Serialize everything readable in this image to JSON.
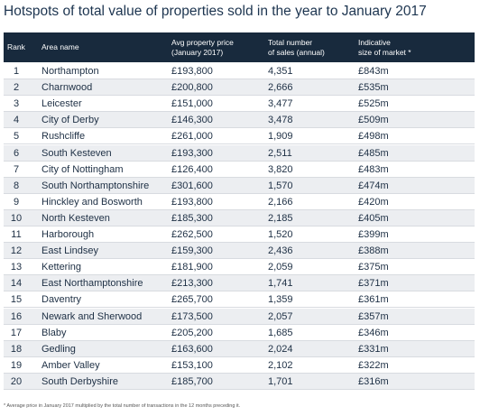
{
  "title": "Hotspots of total value of properties sold in the year to January 2017",
  "table": {
    "header": [
      [
        "Rank"
      ],
      [
        "Area name"
      ],
      [
        "Avg property price",
        "(January 2017)"
      ],
      [
        "Total number",
        "of sales (annual)"
      ],
      [
        "Indicative",
        "size of market *"
      ]
    ],
    "rows": [
      [
        "1",
        "Northampton",
        "£193,800",
        "4,351",
        "£843m"
      ],
      [
        "2",
        "Charnwood",
        "£200,800",
        "2,666",
        "£535m"
      ],
      [
        "3",
        "Leicester",
        "£151,000",
        "3,477",
        "£525m"
      ],
      [
        "4",
        "City of Derby",
        "£146,300",
        "3,478",
        "£509m"
      ],
      [
        "5",
        "Rushcliffe",
        "£261,000",
        "1,909",
        "£498m"
      ],
      [
        "6",
        "South Kesteven",
        "£193,300",
        "2,511",
        "£485m"
      ],
      [
        "7",
        "City of Nottingham",
        "£126,400",
        "3,820",
        "£483m"
      ],
      [
        "8",
        "South Northamptonshire",
        "£301,600",
        "1,570",
        "£474m"
      ],
      [
        "9",
        "Hinckley and Bosworth",
        "£193,800",
        "2,166",
        "£420m"
      ],
      [
        "10",
        "North Kesteven",
        "£185,300",
        "2,185",
        "£405m"
      ],
      [
        "11",
        "Harborough",
        "£262,500",
        "1,520",
        "£399m"
      ],
      [
        "12",
        "East Lindsey",
        "£159,300",
        "2,436",
        "£388m"
      ],
      [
        "13",
        "Kettering",
        "£181,900",
        "2,059",
        "£375m"
      ],
      [
        "14",
        "East Northamptonshire",
        "£213,300",
        "1,741",
        "£371m"
      ],
      [
        "15",
        "Daventry",
        "£265,700",
        "1,359",
        "£361m"
      ],
      [
        "16",
        "Newark and Sherwood",
        "£173,500",
        "2,057",
        "£357m"
      ],
      [
        "17",
        "Blaby",
        "£205,200",
        "1,685",
        "£346m"
      ],
      [
        "18",
        "Gedling",
        "£163,600",
        "2,024",
        "£331m"
      ],
      [
        "19",
        "Amber Valley",
        "£153,100",
        "2,102",
        "£322m"
      ],
      [
        "20",
        "South Derbyshire",
        "£185,700",
        "1,701",
        "£316m"
      ]
    ]
  },
  "footnote": "* Average price in January 2017 multiplied by the total number of transactions in the 12 months preceding it."
}
